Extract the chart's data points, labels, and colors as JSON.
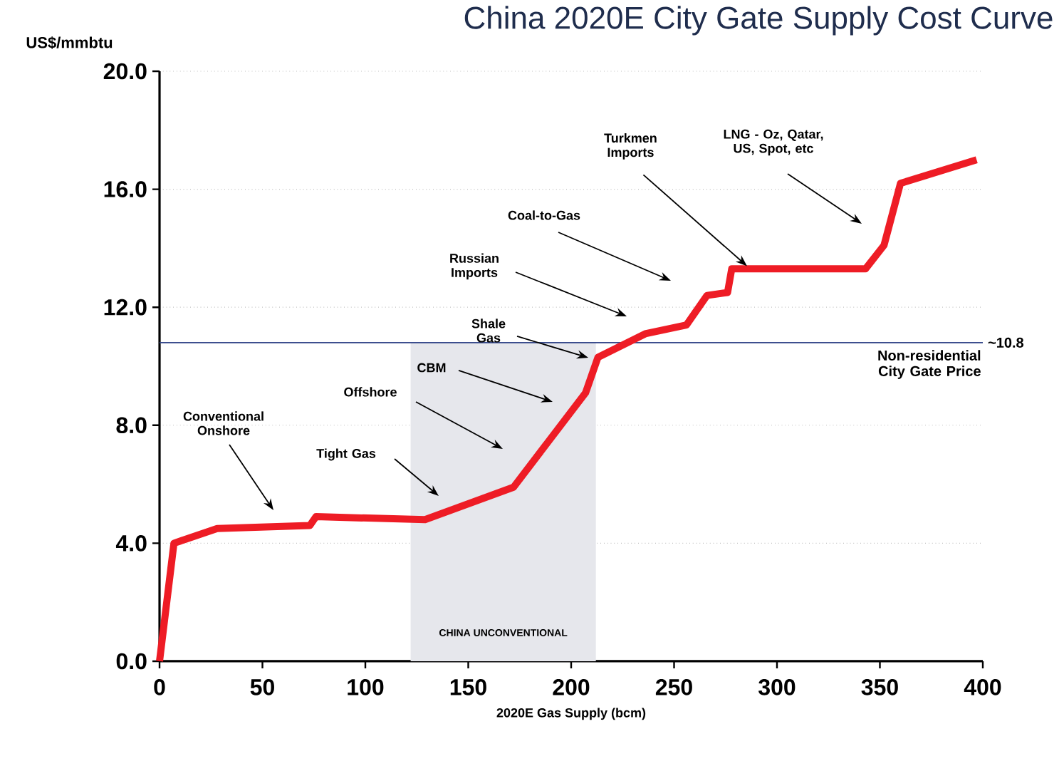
{
  "chart_data": {
    "type": "line",
    "title": "China 2020E City Gate Supply Cost Curve",
    "xlabel": "2020E Gas Supply (bcm)",
    "ylabel": "US$/mmbtu",
    "x": [
      0,
      7,
      28,
      73,
      76,
      129,
      172,
      207,
      213,
      236,
      256,
      266,
      276,
      278,
      343,
      352,
      360,
      397
    ],
    "values": [
      0,
      4.0,
      4.5,
      4.6,
      4.9,
      4.8,
      5.9,
      9.1,
      10.3,
      11.1,
      11.4,
      12.4,
      12.5,
      13.3,
      13.3,
      14.1,
      16.2,
      17.0
    ],
    "color": "#ee1c25",
    "xlim": [
      0,
      400
    ],
    "ylim": [
      0,
      20
    ],
    "xticks": [
      0,
      50,
      100,
      150,
      200,
      250,
      300,
      350,
      400
    ],
    "yticks": [
      {
        "value": 0,
        "label": "0.0"
      },
      {
        "value": 4,
        "label": "4.0"
      },
      {
        "value": 8,
        "label": "8.0"
      },
      {
        "value": 12,
        "label": "12.0"
      },
      {
        "value": 16,
        "label": "16.0"
      },
      {
        "value": 20,
        "label": "20.0"
      }
    ],
    "grid": "y",
    "ref_lines": [
      {
        "axis": "y",
        "value": 10.8,
        "label": "~10.8",
        "color": "#34478a"
      }
    ],
    "bands": [
      {
        "axis": "x",
        "from": 122,
        "to": 212,
        "label": "CHINA UNCONVENTIONAL",
        "color": "#e6e7ec"
      }
    ],
    "annotations": [
      "Conventional Onshore",
      "Tight Gas",
      "Offshore",
      "CBM",
      "Shale Gas",
      "Russian Imports",
      "Coal-to-Gas",
      {
        "text": "Turkmen Imports",
        "x": 287,
        "y": 13.3
      },
      "LNG - Oz, Qatar, US, Spot, etc",
      "Non-residential City Gate Price"
    ]
  }
}
